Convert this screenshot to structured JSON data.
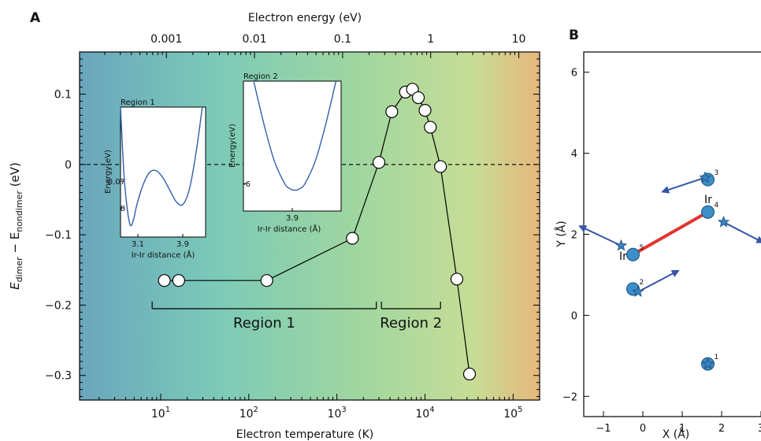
{
  "panel_a": {
    "label": "A",
    "top_axis_title": "Electron energy (eV)",
    "top_ticks": [
      "0.001",
      "0.01",
      "0.1",
      "1",
      "10"
    ],
    "x_axis_title": "Electron temperature (K)",
    "y_axis_title": "E_dimer − E_nondimer (eV)",
    "y_main": "E",
    "y_sub1": "dimer",
    "y_mid": " − E",
    "y_sub2": "nondimer",
    "y_unit": "  (eV)",
    "x_ticks": [
      {
        "base": "10",
        "exp": "1"
      },
      {
        "base": "10",
        "exp": "2"
      },
      {
        "base": "10",
        "exp": "3"
      },
      {
        "base": "10",
        "exp": "4"
      },
      {
        "base": "10",
        "exp": "5"
      }
    ],
    "y_ticks": [
      "0.1",
      "0",
      "−0.1",
      "−0.2",
      "−0.3"
    ],
    "region1_label": "Region 1",
    "region2_label": "Region 2",
    "gradient_colors": [
      "#6aa6bd",
      "#7ccab8",
      "#9fd6a0",
      "#c5dd96",
      "#e7b77d"
    ]
  },
  "inset1": {
    "title": "Region 1",
    "ylabel": "Energy(eV)",
    "xlabel": "Ir-Ir distance (Å)",
    "y_ticks": [
      "0.07",
      "0"
    ],
    "x_ticks": [
      "3.1",
      "3.9"
    ]
  },
  "inset2": {
    "title": "Region 2",
    "ylabel": "Energy(eV)",
    "xlabel": "Ir-Ir distance (Å)",
    "y_ticks": [
      "-6"
    ],
    "x_ticks": [
      "3.9"
    ]
  },
  "panel_b": {
    "label": "B",
    "x_axis_title": "X (Å)",
    "y_axis_title": "Y (Å)",
    "x_ticks": [
      "−1",
      "0",
      "1",
      "2",
      "3"
    ],
    "y_ticks": [
      "6",
      "4",
      "2",
      "0",
      "−2"
    ],
    "ir_label_4": "Ir",
    "ir_label_5": "Ir",
    "atom_numbers": [
      "1",
      "2",
      "3",
      "4",
      "5"
    ],
    "atom_color": "#3a8fc9",
    "star_color": "#3a82c0",
    "arrow_color": "#3455a8",
    "bond_color": "#e3342f"
  },
  "chart_data": [
    {
      "type": "line",
      "panel": "A",
      "xlabel": "Electron temperature (K)",
      "x2label": "Electron energy (eV)",
      "ylabel": "E_dimer − E_nondimer (eV)",
      "xscale": "log",
      "xlim": [
        1.2,
        200000
      ],
      "ylim": [
        -0.335,
        0.16
      ],
      "grid": false,
      "reference_line_y": 0,
      "points": [
        {
          "x": 11,
          "y": -0.165
        },
        {
          "x": 16,
          "y": -0.165
        },
        {
          "x": 160,
          "y": -0.165
        },
        {
          "x": 1500,
          "y": -0.105
        },
        {
          "x": 3000,
          "y": 0.003
        },
        {
          "x": 4200,
          "y": 0.075
        },
        {
          "x": 6000,
          "y": 0.103
        },
        {
          "x": 7200,
          "y": 0.107
        },
        {
          "x": 8400,
          "y": 0.095
        },
        {
          "x": 10000,
          "y": 0.077
        },
        {
          "x": 11500,
          "y": 0.053
        },
        {
          "x": 15000,
          "y": -0.003
        },
        {
          "x": 23000,
          "y": -0.163
        },
        {
          "x": 32000,
          "y": -0.298
        }
      ],
      "regions": [
        {
          "name": "Region 1",
          "x_range": [
            8,
            2800
          ]
        },
        {
          "name": "Region 2",
          "x_range": [
            3200,
            15000
          ]
        }
      ]
    },
    {
      "type": "line",
      "panel": "A-inset-1",
      "title": "Region 1",
      "xlabel": "Ir-Ir distance (Å)",
      "ylabel": "Energy(eV)",
      "x": [
        2.95,
        3.0,
        3.05,
        3.1,
        3.15,
        3.2,
        3.3,
        3.4,
        3.5,
        3.6,
        3.7,
        3.8,
        3.9,
        4.0,
        4.1,
        4.2
      ],
      "y": [
        0.2,
        0.09,
        0.03,
        0.0,
        0.01,
        0.035,
        0.07,
        0.09,
        0.092,
        0.08,
        0.06,
        0.04,
        0.035,
        0.06,
        0.12,
        0.2
      ],
      "ylim": [
        -0.02,
        0.2
      ],
      "xlim": [
        2.95,
        4.25
      ]
    },
    {
      "type": "line",
      "panel": "A-inset-2",
      "title": "Region 2",
      "xlabel": "Ir-Ir distance (Å)",
      "ylabel": "Energy(eV)",
      "x": [
        3.5,
        3.6,
        3.7,
        3.8,
        3.85,
        3.9,
        3.95,
        4.0,
        4.1,
        4.2,
        4.3
      ],
      "y": [
        0.0,
        -2.5,
        -4.6,
        -5.9,
        -6.2,
        -6.3,
        -6.2,
        -5.9,
        -4.6,
        -2.5,
        0.0
      ],
      "ylim": [
        -7.5,
        0
      ],
      "xlim": [
        3.4,
        4.35
      ]
    },
    {
      "type": "scatter",
      "panel": "B",
      "xlabel": "X (Å)",
      "ylabel": "Y (Å)",
      "xlim": [
        -1.5,
        3.1
      ],
      "ylim": [
        -2.5,
        6.5
      ],
      "atoms": [
        {
          "id": "1",
          "x": 1.65,
          "y": -1.2
        },
        {
          "id": "2",
          "x": -0.25,
          "y": 0.65
        },
        {
          "id": "3",
          "x": 1.65,
          "y": 3.35
        },
        {
          "id": "4",
          "x": 1.65,
          "y": 2.55,
          "element": "Ir"
        },
        {
          "id": "5",
          "x": -0.25,
          "y": 1.5,
          "element": "Ir"
        }
      ],
      "stars": [
        {
          "x": 1.65,
          "y": -1.2
        },
        {
          "x": -0.12,
          "y": 0.58
        },
        {
          "x": 1.58,
          "y": 3.4
        },
        {
          "x": 2.05,
          "y": 2.3
        },
        {
          "x": -0.55,
          "y": 1.72
        }
      ],
      "displacement_arrows": [
        {
          "from": [
            -0.12,
            0.58
          ],
          "to": [
            0.9,
            1.1
          ]
        },
        {
          "from": [
            1.58,
            3.4
          ],
          "to": [
            0.5,
            3.05
          ]
        },
        {
          "from": [
            2.05,
            2.3
          ],
          "to": [
            3.05,
            1.8
          ]
        },
        {
          "from": [
            -0.55,
            1.72
          ],
          "to": [
            -1.6,
            2.2
          ]
        }
      ],
      "bond": {
        "from": "5",
        "to": "4"
      }
    }
  ]
}
